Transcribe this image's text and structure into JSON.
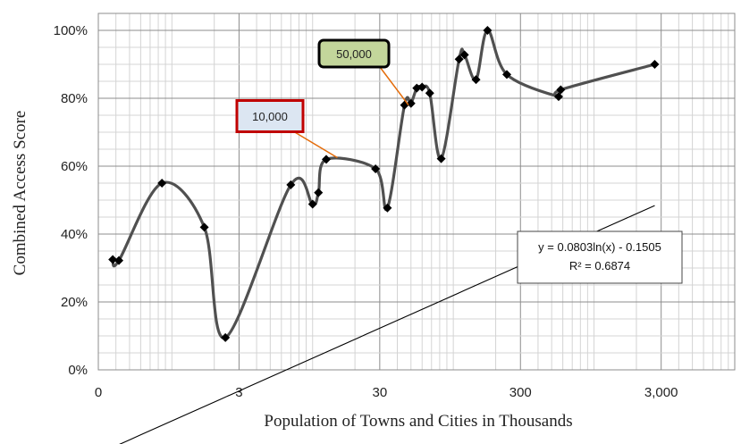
{
  "chart_data": {
    "type": "scatter",
    "xlabel": "Population of Towns and Cities in Thousands",
    "ylabel": "Combined Access Score",
    "x_scale": "log",
    "xlim": [
      0.3,
      10000
    ],
    "ylim": [
      0,
      1.05
    ],
    "x_ticks": [
      {
        "value": 0.3,
        "label": "0"
      },
      {
        "value": 3,
        "label": "3"
      },
      {
        "value": 30,
        "label": "30"
      },
      {
        "value": 300,
        "label": "300"
      },
      {
        "value": 3000,
        "label": "3,000"
      }
    ],
    "y_ticks": [
      {
        "value": 0,
        "label": "0%"
      },
      {
        "value": 0.2,
        "label": "20%"
      },
      {
        "value": 0.4,
        "label": "40%"
      },
      {
        "value": 0.6,
        "label": "60%"
      },
      {
        "value": 0.8,
        "label": "80%"
      },
      {
        "value": 1.0,
        "label": "100%"
      }
    ],
    "grid": true,
    "series": [
      {
        "marker": "diamond",
        "color": "#505050",
        "smooth_line": true,
        "points": [
          {
            "x": 0.38,
            "y": 0.325
          },
          {
            "x": 0.42,
            "y": 0.322
          },
          {
            "x": 0.85,
            "y": 0.55
          },
          {
            "x": 1.7,
            "y": 0.42
          },
          {
            "x": 2.4,
            "y": 0.095
          },
          {
            "x": 7.0,
            "y": 0.545
          },
          {
            "x": 10.0,
            "y": 0.488
          },
          {
            "x": 11.0,
            "y": 0.522
          },
          {
            "x": 12.5,
            "y": 0.62
          },
          {
            "x": 28,
            "y": 0.592
          },
          {
            "x": 34,
            "y": 0.477
          },
          {
            "x": 45,
            "y": 0.78
          },
          {
            "x": 50,
            "y": 0.785
          },
          {
            "x": 55,
            "y": 0.83
          },
          {
            "x": 60,
            "y": 0.833
          },
          {
            "x": 68,
            "y": 0.815
          },
          {
            "x": 82,
            "y": 0.622
          },
          {
            "x": 110,
            "y": 0.915
          },
          {
            "x": 120,
            "y": 0.928
          },
          {
            "x": 145,
            "y": 0.855
          },
          {
            "x": 175,
            "y": 1.0
          },
          {
            "x": 240,
            "y": 0.87
          },
          {
            "x": 560,
            "y": 0.805
          },
          {
            "x": 580,
            "y": 0.825
          },
          {
            "x": 2700,
            "y": 0.9
          }
        ]
      }
    ],
    "trendline": {
      "type": "logarithmic",
      "a": 0.0803,
      "b": -0.1505,
      "x_range": [
        0.38,
        2700
      ],
      "color": "#000000",
      "equation": "y = 0.0803ln(x) - 0.1505",
      "r_squared": "R² = 0.6874"
    },
    "annotations": [
      {
        "text": "10,000",
        "x": 15,
        "y": 0.625,
        "fill": "#dce6f2",
        "border": "#c00000"
      },
      {
        "text": "50,000",
        "x": 48,
        "y": 0.78,
        "fill": "#c3d69b",
        "border": "#000000"
      }
    ]
  }
}
